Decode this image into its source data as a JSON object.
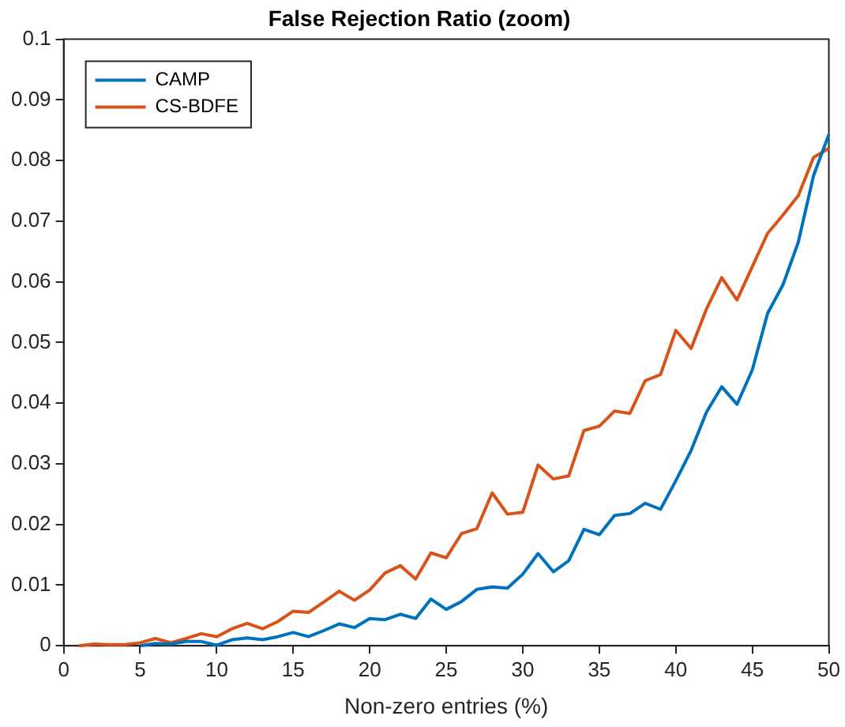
{
  "chart_data": {
    "type": "line",
    "title": "False Rejection Ratio (zoom)",
    "xlabel": "Non-zero entries (%)",
    "x": [
      1,
      2,
      3,
      4,
      5,
      6,
      7,
      8,
      9,
      10,
      11,
      12,
      13,
      14,
      15,
      16,
      17,
      18,
      19,
      20,
      21,
      22,
      23,
      24,
      25,
      26,
      27,
      28,
      29,
      30,
      31,
      32,
      33,
      34,
      35,
      36,
      37,
      38,
      39,
      40,
      41,
      42,
      43,
      44,
      45,
      46,
      47,
      48,
      49,
      50
    ],
    "series": [
      {
        "name": "CAMP",
        "color": "#0072bd",
        "values": [
          null,
          null,
          null,
          null,
          0,
          0.0004,
          0.0003,
          0.0007,
          0.0007,
          0.0001,
          0.001,
          0.0013,
          0.001,
          0.0015,
          0.0022,
          0.0015,
          0.0025,
          0.0036,
          0.003,
          0.0045,
          0.0043,
          0.0052,
          0.0045,
          0.0077,
          0.006,
          0.0073,
          0.0093,
          0.0097,
          0.0095,
          0.0118,
          0.0152,
          0.0122,
          0.014,
          0.0192,
          0.0183,
          0.0215,
          0.0218,
          0.0235,
          0.0225,
          0.0272,
          0.0322,
          0.0385,
          0.0427,
          0.0398,
          0.0455,
          0.0548,
          0.0595,
          0.0665,
          0.0775,
          0.0843
        ]
      },
      {
        "name": "CS-BDFE",
        "color": "#d95319",
        "values": [
          0,
          0.0003,
          0.0002,
          0.0002,
          0.0005,
          0.0012,
          0.0005,
          0.0012,
          0.002,
          0.0015,
          0.0028,
          0.0037,
          0.0028,
          0.004,
          0.0057,
          0.0055,
          0.0072,
          0.009,
          0.0075,
          0.0092,
          0.012,
          0.0132,
          0.011,
          0.0153,
          0.0145,
          0.0185,
          0.0193,
          0.0252,
          0.0217,
          0.022,
          0.0298,
          0.0275,
          0.028,
          0.0355,
          0.0362,
          0.0387,
          0.0383,
          0.0437,
          0.0447,
          0.052,
          0.049,
          0.0555,
          0.0607,
          0.057,
          0.0625,
          0.068,
          0.071,
          0.0742,
          0.0805,
          0.082
        ]
      }
    ],
    "xlim": [
      0,
      50
    ],
    "xticks": [
      0,
      5,
      10,
      15,
      20,
      25,
      30,
      35,
      40,
      45,
      50
    ],
    "ylim": [
      0,
      0.1
    ],
    "yticks": [
      0,
      0.01,
      0.02,
      0.03,
      0.04,
      0.05,
      0.06,
      0.07,
      0.08,
      0.09,
      0.1
    ],
    "grid": false,
    "legend": "top left",
    "marker": "none",
    "line_style": "solid"
  }
}
